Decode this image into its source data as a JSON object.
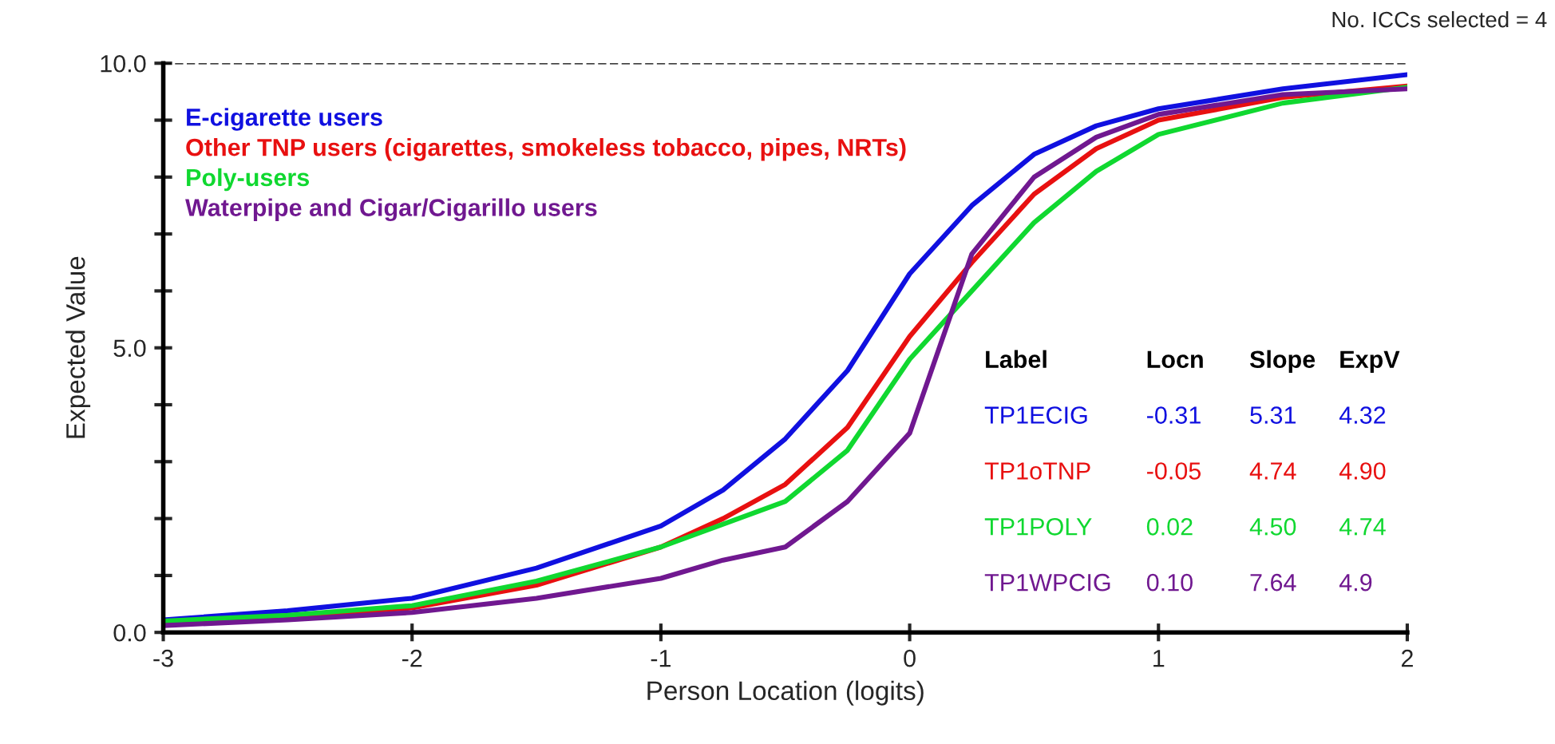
{
  "chart_data": {
    "type": "line",
    "xlabel": "Person Location (logits)",
    "ylabel": "Expected Value",
    "x": [
      -3,
      -2.5,
      -2,
      -1.5,
      -1,
      -0.75,
      -0.5,
      -0.25,
      0,
      0.25,
      0.5,
      0.75,
      1,
      1.5,
      2
    ],
    "series": [
      {
        "name": "E-cigarette users",
        "color": "#1010e0",
        "values": [
          0.22,
          0.38,
          0.6,
          1.13,
          1.87,
          2.5,
          3.4,
          4.6,
          6.3,
          7.5,
          8.4,
          8.9,
          9.2,
          9.55,
          9.8
        ]
      },
      {
        "name": "Other TNP users (cigarettes, smokeless tobacco, pipes, NRTs)",
        "color": "#e81010",
        "values": [
          0.18,
          0.28,
          0.43,
          0.83,
          1.5,
          2.0,
          2.6,
          3.6,
          5.2,
          6.5,
          7.7,
          8.5,
          9.0,
          9.4,
          9.6
        ]
      },
      {
        "name": "Poly-users",
        "color": "#10d830",
        "values": [
          0.2,
          0.3,
          0.47,
          0.9,
          1.5,
          1.9,
          2.3,
          3.2,
          4.8,
          6.0,
          7.2,
          8.1,
          8.75,
          9.3,
          9.58
        ]
      },
      {
        "name": "Waterpipe and Cigar/Cigarillo users",
        "color": "#701890",
        "values": [
          0.12,
          0.22,
          0.35,
          0.6,
          0.95,
          1.27,
          1.5,
          2.3,
          3.5,
          6.65,
          8.0,
          8.7,
          9.1,
          9.45,
          9.55
        ]
      }
    ],
    "xlim": [
      -3,
      2
    ],
    "xticks": [
      -3,
      -2,
      -1,
      0,
      1,
      2
    ],
    "ylim": [
      0,
      10
    ],
    "yticks": [
      {
        "value": 0,
        "label": "0.0"
      },
      {
        "value": 1,
        "label": null
      },
      {
        "value": 2,
        "label": null
      },
      {
        "value": 3,
        "label": null
      },
      {
        "value": 4,
        "label": null
      },
      {
        "value": 5,
        "label": "5.0"
      },
      {
        "value": 6,
        "label": null
      },
      {
        "value": 7,
        "label": null
      },
      {
        "value": 8,
        "label": null
      },
      {
        "value": 9,
        "label": null
      },
      {
        "value": 10,
        "label": "10.0"
      }
    ],
    "ref_lines": [
      {
        "axis": "y",
        "value": 10,
        "line_style": "dashed",
        "color": "#000000"
      }
    ],
    "annotations": [
      "No. ICCs selected = 4",
      "Label",
      "Locn",
      "Slope",
      "ExpV",
      "TP1ECIG",
      "-0.31",
      "5.31",
      "4.32",
      "TP1oTNP",
      "-0.05",
      "4.74",
      "4.90",
      "TP1POLY",
      "0.02",
      "4.50",
      "4.74",
      "TP1WPCIG",
      "0.10",
      "7.64",
      "4.9"
    ],
    "legend": "top left",
    "grid": false,
    "marker": "none",
    "line_style": "solid"
  }
}
